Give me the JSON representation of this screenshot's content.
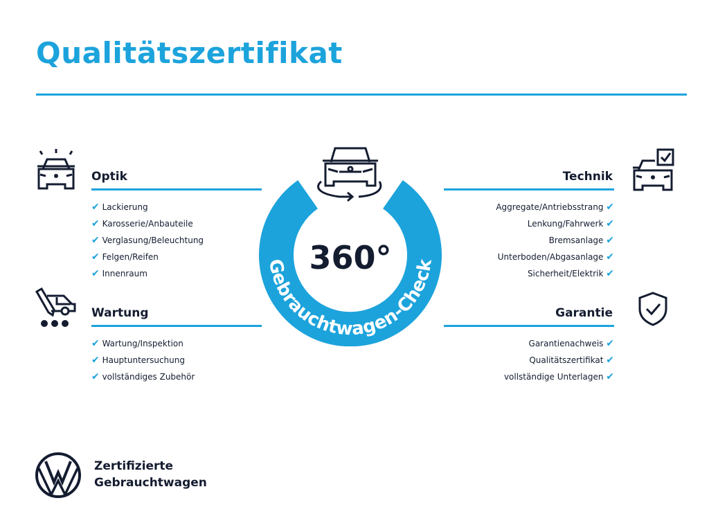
{
  "title": "Qualitätszertifikat",
  "colors": {
    "accent": "#1ca3dc",
    "text": "#141c30"
  },
  "center": {
    "degrees": "360°",
    "ring_text": "Gebrauchtwagen-Check",
    "icon": "car-rotate-icon"
  },
  "sections": {
    "optik": {
      "label": "Optik",
      "icon": "car-lights-icon",
      "items": [
        "Lackierung",
        "Karosserie/Anbauteile",
        "Verglasung/Beleuchtung",
        "Felgen/Reifen",
        "Innenraum"
      ]
    },
    "wartung": {
      "label": "Wartung",
      "icon": "service-tools-icon",
      "items": [
        "Wartung/Inspektion",
        "Hauptuntersuchung",
        "vollständiges Zubehör"
      ]
    },
    "technik": {
      "label": "Technik",
      "icon": "car-checkbox-icon",
      "items": [
        "Aggregate/Antriebsstrang",
        "Lenkung/Fahrwerk",
        "Bremsanlage",
        "Unterboden/Abgasanlage",
        "Sicherheit/Elektrik"
      ]
    },
    "garantie": {
      "label": "Garantie",
      "icon": "shield-check-icon",
      "items": [
        "Garantienachweis",
        "Qualitätszertifikat",
        "vollständige Unterlagen"
      ]
    }
  },
  "check_mark": "✔",
  "footer": {
    "line1": "Zertifizierte",
    "line2": "Gebrauchtwagen",
    "logo": "vw-logo"
  }
}
